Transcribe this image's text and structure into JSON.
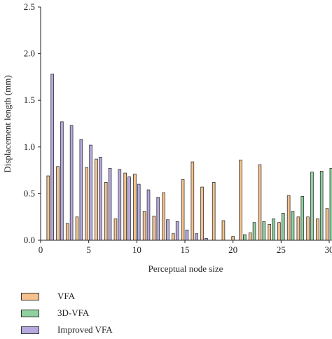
{
  "chart_data": {
    "type": "bar",
    "xlabel": "Perceptual node size",
    "ylabel": "Displacement length (mm)",
    "xlim": [
      0,
      30
    ],
    "ylim": [
      0,
      2.5
    ],
    "xticks": [
      0,
      5,
      10,
      15,
      20,
      25,
      30
    ],
    "yticks": [
      0.0,
      0.5,
      1.0,
      1.5,
      2.0,
      2.5
    ],
    "grid": false,
    "legend_position": "bottom-left",
    "categories": [
      1,
      2,
      3,
      4,
      5,
      6,
      7,
      8,
      9,
      10,
      11,
      12,
      13,
      14,
      15,
      16,
      17,
      18,
      19,
      20,
      21,
      22,
      23,
      24,
      25,
      26,
      27,
      28,
      29,
      30
    ],
    "series": [
      {
        "name": "VFA",
        "color": "#f5c28e",
        "values": [
          0.69,
          0.79,
          0.18,
          0.25,
          0.78,
          0.87,
          0.62,
          0.23,
          0.72,
          0.71,
          0.31,
          0.26,
          0.51,
          0.07,
          0.65,
          0.84,
          0.57,
          0.62,
          0.21,
          0.04,
          0.86,
          0.08,
          0.81,
          0.17,
          0.19,
          0.48,
          0.25,
          0.25,
          0.23,
          0.34
        ]
      },
      {
        "name": "3D-VFA",
        "color": "#8fd19e",
        "values": [
          0,
          0,
          0,
          0,
          0,
          0,
          0,
          0,
          0,
          0,
          0,
          0,
          0,
          0,
          0,
          0,
          0,
          0,
          0,
          0,
          0.06,
          0.19,
          0.2,
          0.23,
          0.29,
          0.31,
          0.47,
          0.73,
          0.74,
          0.77
        ]
      },
      {
        "name": "Improved VFA",
        "color": "#b7a9e0",
        "values": [
          1.78,
          1.27,
          1.23,
          1.08,
          1.02,
          0.89,
          0.77,
          0.76,
          0.68,
          0.6,
          0.54,
          0.46,
          0.22,
          0.2,
          0.11,
          0.07,
          0.02,
          0,
          0,
          0,
          0,
          0,
          0,
          0,
          0,
          0,
          0,
          0,
          0,
          0
        ]
      }
    ]
  }
}
